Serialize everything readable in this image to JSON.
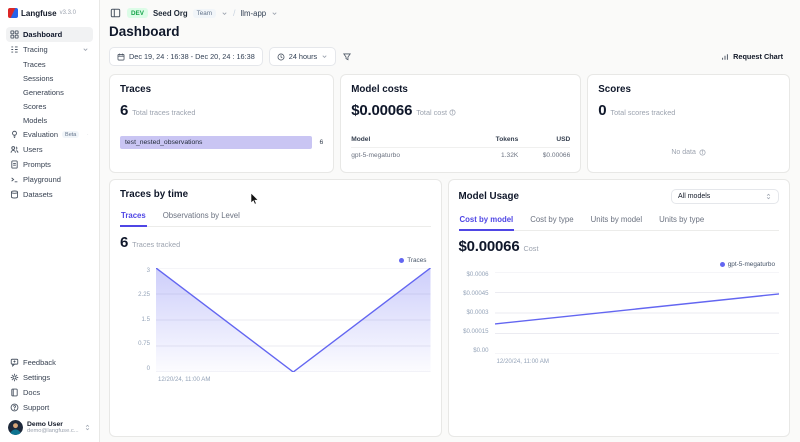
{
  "app": {
    "name": "Langfuse",
    "version": "v3.3.0"
  },
  "sidebar": {
    "items": [
      {
        "label": "Dashboard"
      },
      {
        "label": "Tracing"
      },
      {
        "label": "Traces"
      },
      {
        "label": "Sessions"
      },
      {
        "label": "Generations"
      },
      {
        "label": "Scores"
      },
      {
        "label": "Models"
      },
      {
        "label": "Evaluation",
        "badge": "Beta"
      },
      {
        "label": "Users"
      },
      {
        "label": "Prompts"
      },
      {
        "label": "Playground"
      },
      {
        "label": "Datasets"
      }
    ],
    "footer_items": [
      {
        "label": "Feedback"
      },
      {
        "label": "Settings"
      },
      {
        "label": "Docs"
      },
      {
        "label": "Support"
      }
    ],
    "user": {
      "name": "Demo User",
      "email": "demo@langfuse.c..."
    }
  },
  "header": {
    "env_badge": "DEV",
    "org": "Seed Org",
    "org_role": "Team",
    "project": "llm-app",
    "title": "Dashboard"
  },
  "toolbar": {
    "date_range": "Dec 19, 24 : 16:38 - Dec 20, 24 : 16:38",
    "time_preset": "24 hours",
    "request_chart": "Request Chart"
  },
  "cards": {
    "traces": {
      "title": "Traces",
      "value": "6",
      "subtitle": "Total traces tracked",
      "bars": [
        {
          "label": "test_nested_observations",
          "value": "6"
        }
      ]
    },
    "model_costs": {
      "title": "Model costs",
      "value": "$0.00066",
      "subtitle": "Total cost",
      "headers": [
        "Model",
        "Tokens",
        "USD"
      ],
      "rows": [
        [
          "gpt-5-megaturbo",
          "1.32K",
          "$0.00066"
        ]
      ]
    },
    "scores": {
      "title": "Scores",
      "value": "0",
      "subtitle": "Total scores tracked",
      "empty": "No data"
    }
  },
  "traces_by_time": {
    "title": "Traces by time",
    "tabs": [
      "Traces",
      "Observations by Level"
    ],
    "active_tab": "Traces",
    "value": "6",
    "subtitle": "Traces tracked"
  },
  "model_usage": {
    "title": "Model Usage",
    "filter": "All models",
    "tabs": [
      "Cost by model",
      "Cost by type",
      "Units by model",
      "Units by type"
    ],
    "active_tab": "Cost by model",
    "value": "$0.00066",
    "subtitle": "Cost"
  },
  "chart_data": [
    {
      "type": "area",
      "title": "Traces by time",
      "series": [
        {
          "name": "Traces",
          "values": [
            3,
            0,
            3
          ]
        }
      ],
      "ylim": [
        0,
        3
      ],
      "yticks": [
        0,
        0.75,
        1.5,
        2.25,
        3
      ],
      "ytick_labels": [
        "0",
        "0.75",
        "1.5",
        "2.25",
        "3"
      ],
      "xtick_labels": [
        "12/20/24, 11:00 AM"
      ],
      "legend": [
        "Traces"
      ],
      "legend_position": "top-right",
      "grid": true,
      "color": "#6366f1"
    },
    {
      "type": "line",
      "title": "Model Usage - Cost by model",
      "series": [
        {
          "name": "gpt-5-megaturbo",
          "values": [
            0.00022,
            0.00044
          ]
        }
      ],
      "ylim": [
        0,
        0.0006
      ],
      "yticks": [
        0,
        0.00015,
        0.0003,
        0.00045,
        0.0006
      ],
      "ytick_labels": [
        "$0.00",
        "$0.00015",
        "$0.0003",
        "$0.00045",
        "$0.0006"
      ],
      "xtick_labels": [
        "12/20/24, 11:00 AM"
      ],
      "legend": [
        "gpt-5-megaturbo"
      ],
      "legend_position": "top-right",
      "grid": true,
      "color": "#6366f1"
    }
  ],
  "colors": {
    "accent": "#4f46e5",
    "chart_line": "#6366f1",
    "bar_fill": "#c9c5f3",
    "env_badge_bg": "#dcfce7",
    "env_badge_text": "#16a34a"
  }
}
